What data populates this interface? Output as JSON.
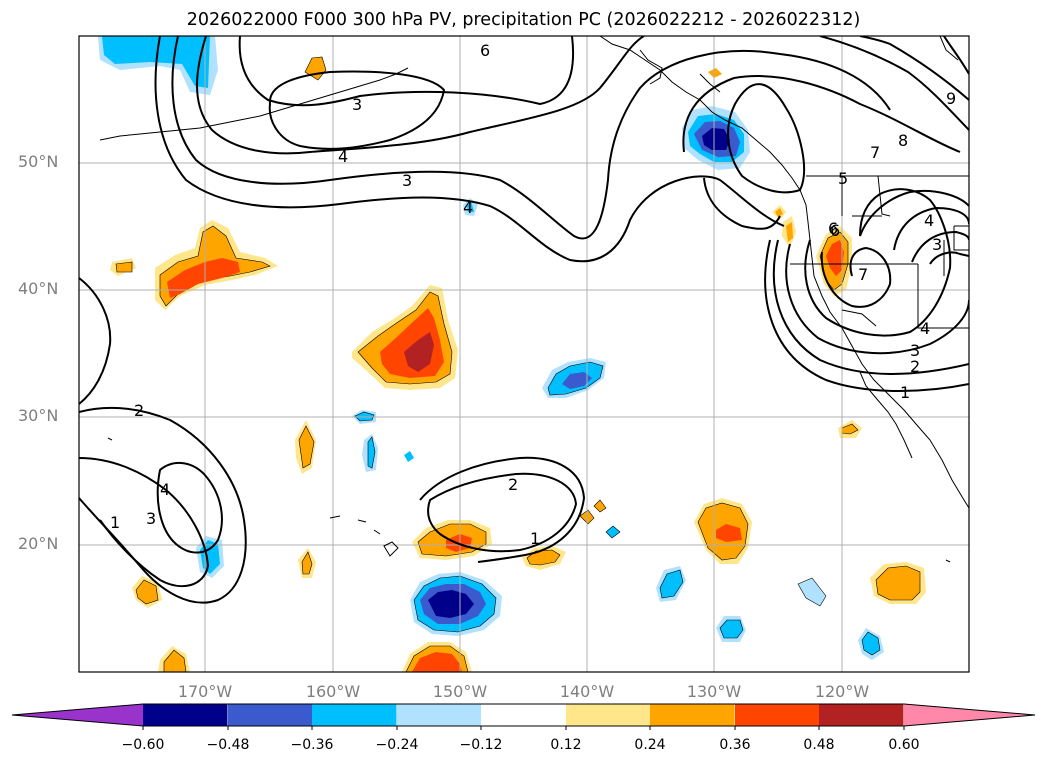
{
  "title": "2026022000 F000 300 hPa PV, precipitation PC (2026022212 - 2026022312)",
  "lat_labels": [
    "50°N",
    "40°N",
    "30°N",
    "20°N"
  ],
  "lon_labels": [
    "170°W",
    "160°W",
    "150°W",
    "140°W",
    "130°W",
    "120°W"
  ],
  "contour_labels": [
    "6",
    "3",
    "4",
    "3",
    "4",
    "2",
    "4",
    "3",
    "1",
    "2",
    "1",
    "9",
    "8",
    "7",
    "6",
    "5",
    "4",
    "3",
    "7",
    "6",
    "4",
    "3",
    "2",
    "1"
  ],
  "colorbar": {
    "ticks": [
      "−0.60",
      "−0.48",
      "−0.36",
      "−0.24",
      "−0.12",
      "0.12",
      "0.24",
      "0.36",
      "0.48",
      "0.60"
    ],
    "colors": [
      "#9933cc",
      "#00008b",
      "#3a5acd",
      "#00bfff",
      "#b0e2ff",
      "#ffffff",
      "#ffe68a",
      "#ffa500",
      "#ff4500",
      "#b22222",
      "#ff88aa"
    ]
  },
  "colors": {
    "contour": "#000000",
    "grid": "#b0b0b0",
    "coast": "#000000"
  }
}
